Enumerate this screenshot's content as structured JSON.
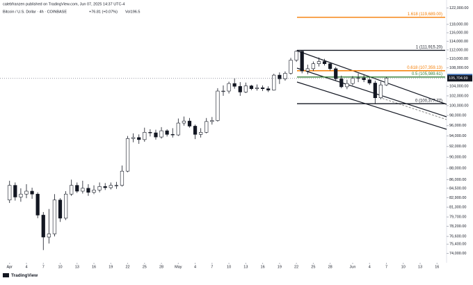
{
  "header": {
    "publisher": "calebfranzen published on TradingView.com, Jun 07, 2025 14:37 UTC-4",
    "symbol": "Bitcoin / U.S. Dollar · 4h · COINBASE",
    "change": "+76.81 (+0.07%)",
    "volume": "Vol196.5"
  },
  "footer": {
    "brand": "TradingView"
  },
  "chart_data": {
    "type": "candlestick",
    "log_scale": true,
    "up_color": "#ffffff",
    "down_color": "#131722",
    "wick_color": "#131722",
    "open": [
      82500,
      85000,
      83000,
      83500,
      84000,
      83500,
      80000,
      76500,
      77000,
      82500,
      79500,
      83500,
      85000,
      84000,
      84500,
      83800,
      84200,
      84800,
      84600,
      85000,
      85000,
      87500,
      93500,
      93700,
      93300,
      94700,
      94600,
      93800,
      95000,
      94300,
      94200,
      96500,
      96900,
      95900,
      94300,
      94700,
      96800,
      97000,
      103000,
      103000,
      104600,
      104000,
      102800,
      104100,
      103500,
      103700,
      103500,
      103200,
      106400,
      105600,
      106800,
      109700,
      111700,
      107300,
      107800,
      108900,
      109400,
      108900,
      107800,
      105600,
      103900,
      104600,
      105700,
      105800,
      105400,
      104700,
      101600,
      104300
    ],
    "high": [
      85800,
      85500,
      84500,
      85200,
      84600,
      83800,
      80500,
      81000,
      83500,
      82800,
      84000,
      86000,
      85500,
      85800,
      85200,
      85000,
      85500,
      85400,
      85500,
      85600,
      88500,
      94000,
      94500,
      94300,
      95600,
      95300,
      95200,
      95700,
      95300,
      95500,
      97400,
      97800,
      97500,
      96200,
      95500,
      97500,
      97700,
      103600,
      104200,
      105000,
      105700,
      104900,
      104800,
      104300,
      104400,
      104200,
      104000,
      106700,
      107000,
      107200,
      110200,
      111900,
      111800,
      108700,
      109400,
      110300,
      110000,
      109200,
      108200,
      106300,
      105400,
      106200,
      106800,
      106500,
      106000,
      105200,
      105000,
      106000
    ],
    "low": [
      82000,
      82400,
      82200,
      82800,
      82700,
      79500,
      74500,
      75500,
      76600,
      78900,
      79200,
      83200,
      83700,
      83600,
      83200,
      83500,
      83800,
      84200,
      84300,
      84400,
      84800,
      87300,
      92800,
      92500,
      92900,
      93900,
      93300,
      93500,
      93900,
      93700,
      94000,
      96000,
      95600,
      93400,
      93700,
      94500,
      96200,
      96800,
      102000,
      102500,
      103500,
      102000,
      102600,
      103200,
      103100,
      103000,
      102800,
      103100,
      104500,
      105200,
      106500,
      109300,
      106800,
      106600,
      107300,
      108300,
      108500,
      107400,
      105200,
      103600,
      103400,
      104200,
      104900,
      104900,
      104300,
      100400,
      101300,
      104100
    ],
    "close": [
      85000,
      83000,
      83500,
      84000,
      83500,
      80000,
      76500,
      77000,
      82500,
      79500,
      83500,
      85000,
      84000,
      84500,
      83800,
      84200,
      84800,
      84600,
      85000,
      85000,
      87500,
      93500,
      93700,
      93300,
      94700,
      94600,
      93800,
      95000,
      94300,
      94200,
      96500,
      96900,
      95900,
      94300,
      94700,
      96800,
      97000,
      103000,
      103000,
      104600,
      104000,
      102800,
      104100,
      103500,
      103700,
      103500,
      103200,
      106400,
      105600,
      106800,
      109700,
      111700,
      107300,
      107800,
      108900,
      109400,
      108900,
      107800,
      105600,
      103900,
      104600,
      105700,
      105800,
      105400,
      104700,
      101600,
      104300,
      105705
    ],
    "xlim": [
      -1.7,
      77.7
    ],
    "xticks": [
      {
        "value": 0,
        "label": "Apr"
      },
      {
        "value": 3,
        "label": "4"
      },
      {
        "value": 6,
        "label": "7"
      },
      {
        "value": 9,
        "label": "10"
      },
      {
        "value": 12,
        "label": "13"
      },
      {
        "value": 15,
        "label": "16"
      },
      {
        "value": 18,
        "label": "19"
      },
      {
        "value": 21,
        "label": "22"
      },
      {
        "value": 24,
        "label": "25"
      },
      {
        "value": 27,
        "label": "28"
      },
      {
        "value": 30,
        "label": "May"
      },
      {
        "value": 33,
        "label": "4"
      },
      {
        "value": 36,
        "label": "7"
      },
      {
        "value": 39,
        "label": "10"
      },
      {
        "value": 42,
        "label": "13"
      },
      {
        "value": 45,
        "label": "16"
      },
      {
        "value": 48,
        "label": "19"
      },
      {
        "value": 51,
        "label": "22"
      },
      {
        "value": 54,
        "label": "25"
      },
      {
        "value": 57,
        "label": "28"
      },
      {
        "value": 61,
        "label": "Jun"
      },
      {
        "value": 64,
        "label": "4"
      },
      {
        "value": 67,
        "label": "7"
      },
      {
        "value": 70,
        "label": "10"
      },
      {
        "value": 73,
        "label": "13"
      },
      {
        "value": 76,
        "label": "16"
      }
    ],
    "ylim": [
      72600,
      124000
    ],
    "yticks": [
      {
        "value": 122000,
        "label": "122,000.00"
      },
      {
        "value": 118000,
        "label": "118,000.00"
      },
      {
        "value": 116000,
        "label": "116,000.00"
      },
      {
        "value": 114000,
        "label": "114,000.00"
      },
      {
        "value": 112000,
        "label": "112,000.00"
      },
      {
        "value": 110000,
        "label": "110,000.00"
      },
      {
        "value": 108000,
        "label": "108,000.00"
      },
      {
        "value": 104000,
        "label": "104,000.00"
      },
      {
        "value": 102000,
        "label": "102,000.00"
      },
      {
        "value": 100000,
        "label": "100,000.00"
      },
      {
        "value": 98000,
        "label": "98,000.00"
      },
      {
        "value": 96000,
        "label": "96,000.00"
      },
      {
        "value": 94000,
        "label": "94,000.00"
      },
      {
        "value": 92000,
        "label": "92,000.00"
      },
      {
        "value": 90000,
        "label": "90,000.00"
      },
      {
        "value": 88000,
        "label": "88,000.00"
      },
      {
        "value": 86000,
        "label": "86,000.00"
      },
      {
        "value": 84500,
        "label": "84,500.00"
      },
      {
        "value": 82900,
        "label": "82,900.00"
      },
      {
        "value": 81300,
        "label": "81,300.00"
      },
      {
        "value": 79700,
        "label": "79,700.00"
      },
      {
        "value": 78200,
        "label": "78,200.00"
      },
      {
        "value": 76600,
        "label": "76,600.00"
      },
      {
        "value": 75400,
        "label": "75,400.00"
      },
      {
        "value": 74000,
        "label": "74,000.00"
      }
    ],
    "fib_levels": [
      {
        "value": 119689,
        "label": "1.618 (119,689.00)",
        "color": "#f57c00"
      },
      {
        "value": 111915.2,
        "label": "1 (111,915.20)",
        "color": "#131722"
      },
      {
        "value": 107359.13,
        "label": "0.618 (107,359.13)",
        "color": "#f57c00"
      },
      {
        "value": 105989.61,
        "label": "0.5 (105,989.61)",
        "color": "#2e7d32"
      },
      {
        "value": 100377.77,
        "label": "0 (100,377.77)",
        "color": "#131722"
      }
    ],
    "price_tags": [
      {
        "value": 105988.77,
        "label": "105,988.77",
        "color": "#3d6fb6"
      },
      {
        "value": 105704.99,
        "label": "105,704.99",
        "color": "#131722"
      }
    ]
  }
}
